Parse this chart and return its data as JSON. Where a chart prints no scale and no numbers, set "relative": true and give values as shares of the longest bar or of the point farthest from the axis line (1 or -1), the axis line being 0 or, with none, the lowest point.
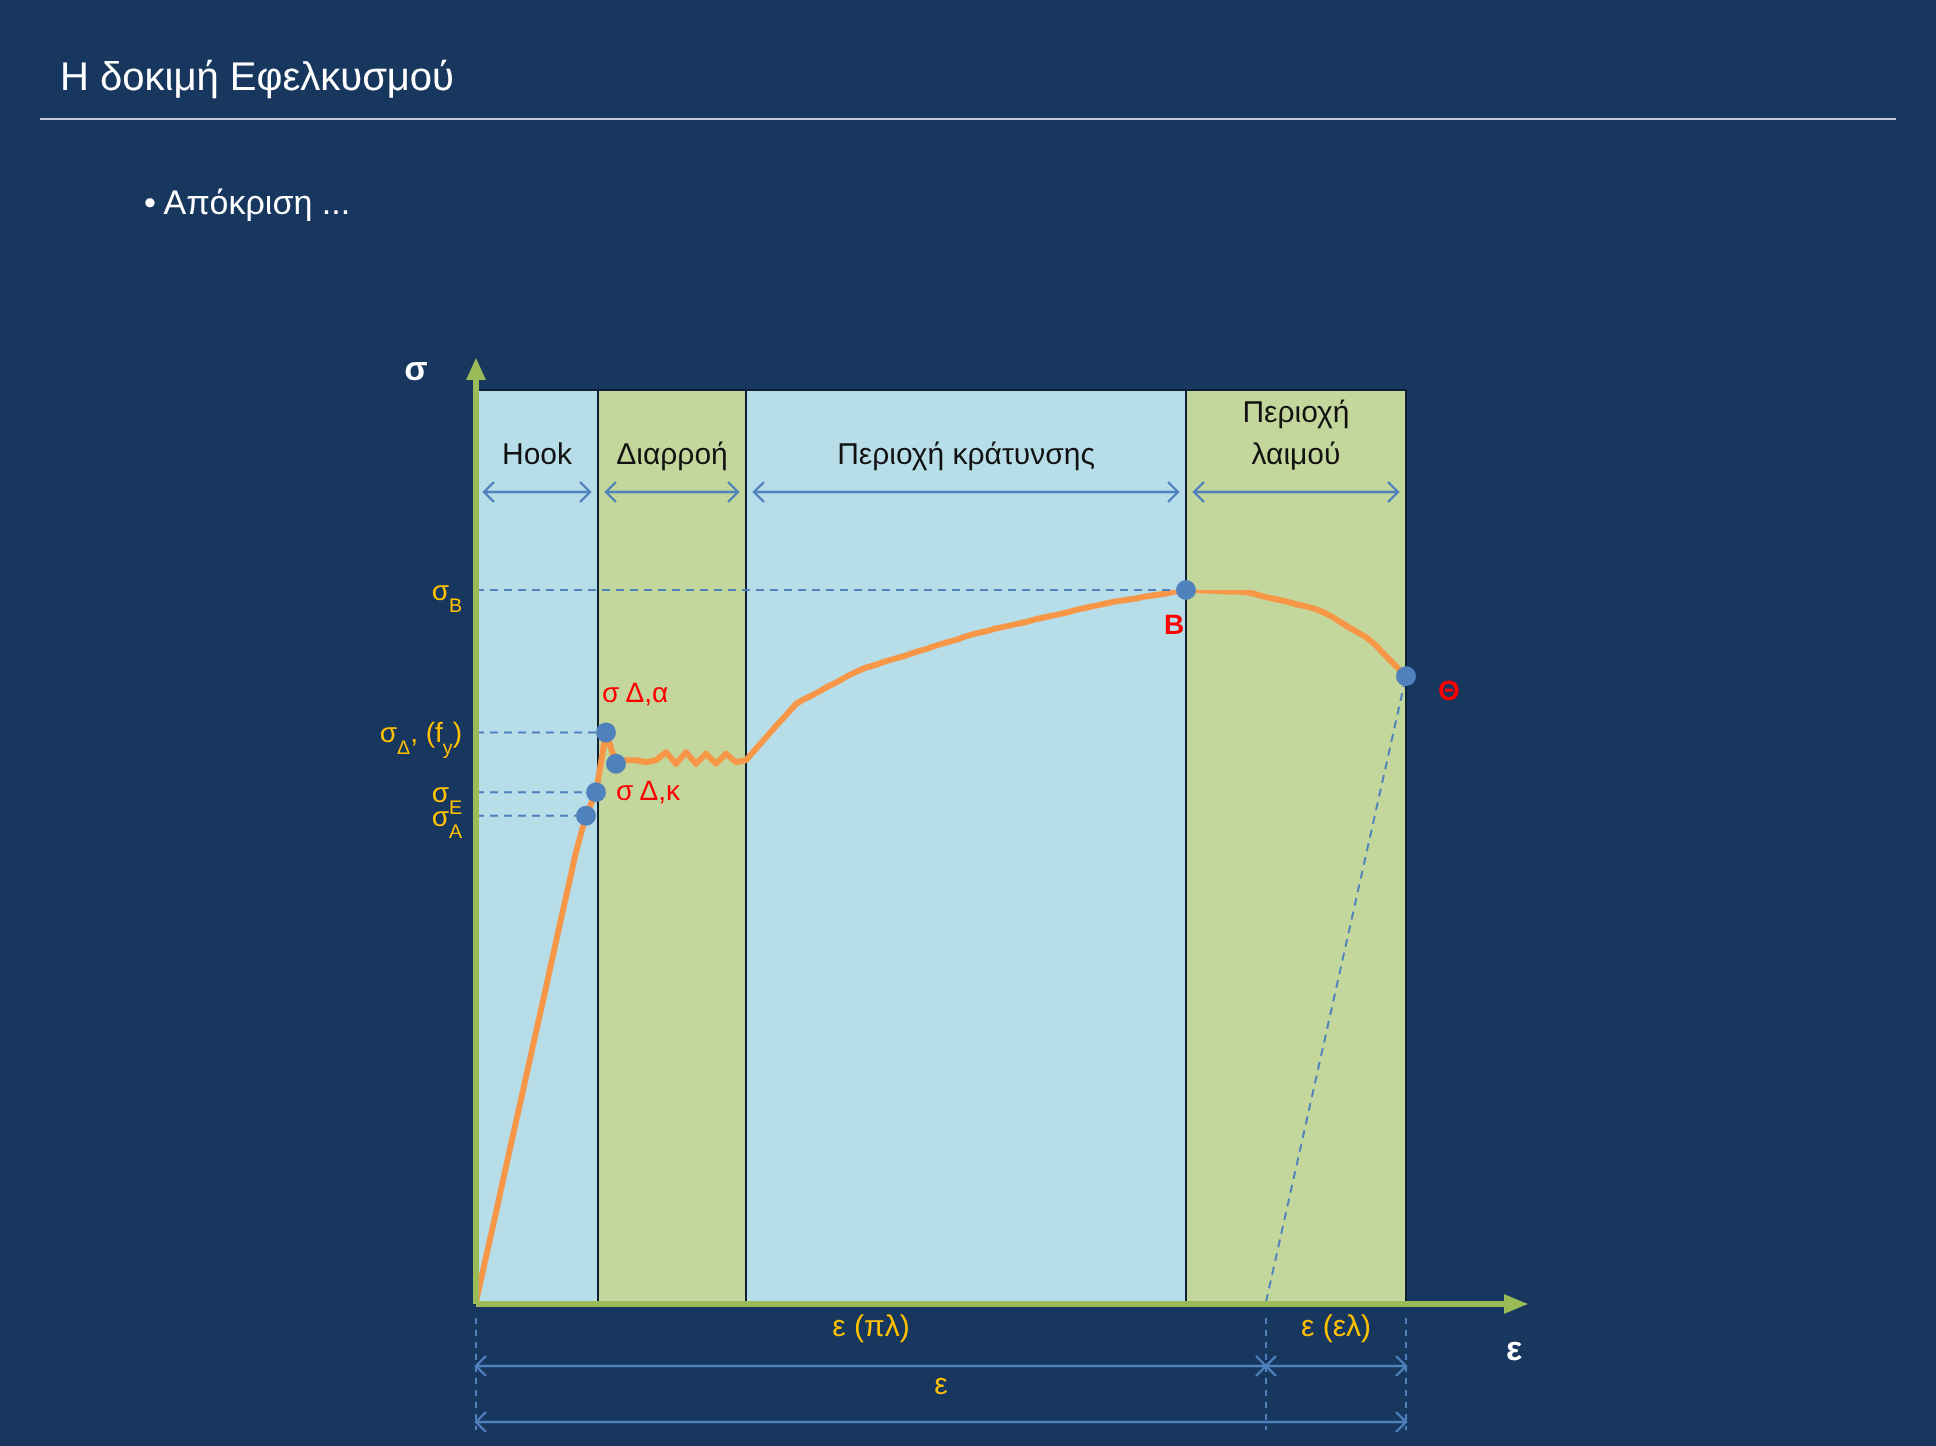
{
  "chart_data": {
    "type": "line",
    "title": "Η δοκιμή Εφελκυσμού",
    "subtitle": "• Απόκριση ...",
    "xlabel": "ε",
    "relative": true,
    "categories": [
      null,
      null,
      null,
      null,
      null,
      null,
      null,
      null,
      null,
      null,
      null,
      null,
      null,
      null,
      null,
      null,
      null,
      null,
      null,
      null,
      null,
      null,
      null,
      null,
      null,
      null,
      null,
      null,
      null,
      null,
      null,
      null,
      null,
      null,
      null,
      null,
      null,
      null,
      null,
      null,
      null,
      null,
      null,
      null,
      null,
      null,
      null,
      null,
      null,
      null,
      null,
      null,
      null,
      null,
      null,
      null,
      null,
      null,
      null,
      null,
      null,
      null,
      null,
      null,
      null,
      null,
      null,
      null,
      null,
      null,
      null,
      null,
      null,
      null,
      null,
      null,
      null,
      null,
      null,
      null,
      null,
      null,
      null,
      null,
      null,
      null,
      null,
      null,
      null,
      null,
      null,
      null,
      null,
      null
    ],
    "series": [
      {
        "type": "line",
        "color": "#f79646",
        "marker": "none",
        "line_style": "solid",
        "values": [
          0,
          0.063,
          0.126,
          0.19,
          0.253,
          0.316,
          0.379,
          0.442,
          0.506,
          0.569,
          0.632,
          0.683,
          0.716,
          0.8,
          0.756,
          0.761,
          0.761,
          0.758,
          0.761,
          0.772,
          0.756,
          0.772,
          0.756,
          0.77,
          0.756,
          0.77,
          0.758,
          0.761,
          0.777,
          0.793,
          0.809,
          0.824,
          0.84,
          0.848,
          0.855,
          0.863,
          0.87,
          0.878,
          0.885,
          0.891,
          0.895,
          0.9,
          0.904,
          0.908,
          0.913,
          0.917,
          0.922,
          0.926,
          0.93,
          0.935,
          0.939,
          0.942,
          0.946,
          0.949,
          0.952,
          0.955,
          0.959,
          0.962,
          0.965,
          0.968,
          0.972,
          0.975,
          0.978,
          0.981,
          0.984,
          0.986,
          0.988,
          0.991,
          0.993,
          0.995,
          0.998,
          1,
          1,
          0.999,
          0.999,
          0.998,
          0.998,
          0.997,
          0.994,
          0.99,
          0.987,
          0.984,
          0.98,
          0.977,
          0.973,
          0.967,
          0.959,
          0.95,
          0.942,
          0.934,
          0.922,
          0.907,
          0.893,
          0.879
        ]
      },
      {
        "type": "line",
        "color": "#4f81bd",
        "line_style": "dashed",
        "values": [
          null,
          null,
          null,
          null,
          null,
          null,
          null,
          null,
          null,
          null,
          null,
          null,
          null,
          null,
          null,
          null,
          null,
          null,
          null,
          null,
          null,
          null,
          null,
          null,
          null,
          null,
          null,
          null,
          null,
          null,
          null,
          null,
          null,
          null,
          null,
          null,
          null,
          null,
          null,
          null,
          null,
          null,
          null,
          null,
          null,
          null,
          null,
          null,
          null,
          null,
          null,
          null,
          null,
          null,
          null,
          null,
          null,
          null,
          null,
          null,
          null,
          null,
          null,
          null,
          null,
          null,
          null,
          null,
          null,
          null,
          null,
          null,
          null,
          null,
          null,
          null,
          null,
          null,
          null,
          0,
          null,
          null,
          null,
          null,
          null,
          null,
          null,
          null,
          null,
          null,
          null,
          null,
          null,
          0.879
        ]
      }
    ],
    "ref_lines": [
      {
        "axis": "y",
        "value": 1,
        "label": "σ$_{B}$",
        "color": "#4f81bd",
        "line_style": "dashed"
      },
      {
        "axis": "y",
        "value": 0.8,
        "label": "σ$_{Δ}$, (f$_{y}$)",
        "color": "#4f81bd",
        "line_style": "dashed"
      },
      {
        "axis": "y",
        "value": 0.716,
        "label": "σ$_{E}$",
        "color": "#4f81bd",
        "line_style": "dashed"
      },
      {
        "axis": "y",
        "value": 0.683,
        "label": "σ$_{A}$",
        "color": "#4f81bd",
        "line_style": "dashed"
      }
    ],
    "annotations": [
      "Hook",
      "Διαρροή",
      "Περιοχή κράτυνσης",
      "Περιοχή λαιμού",
      "σ Δ,α",
      {
        "text": "σ Δ,κ",
        "y": 0.756
      },
      {
        "text": "Β",
        "y": 1
      },
      "Θ",
      "ε (πλ)",
      "ε (ελ)",
      "ε",
      "σ"
    ]
  }
}
